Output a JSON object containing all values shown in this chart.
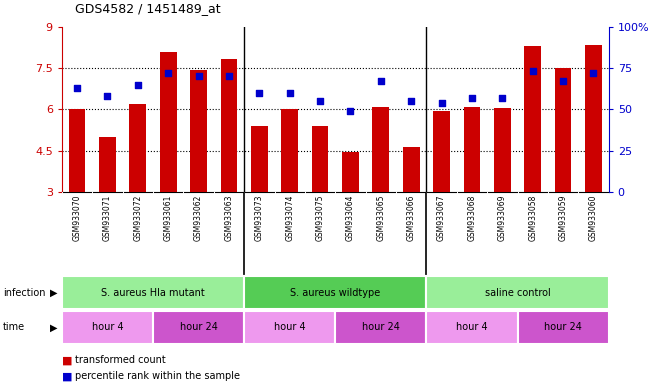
{
  "title": "GDS4582 / 1451489_at",
  "samples": [
    "GSM933070",
    "GSM933071",
    "GSM933072",
    "GSM933061",
    "GSM933062",
    "GSM933063",
    "GSM933073",
    "GSM933074",
    "GSM933075",
    "GSM933064",
    "GSM933065",
    "GSM933066",
    "GSM933067",
    "GSM933068",
    "GSM933069",
    "GSM933058",
    "GSM933059",
    "GSM933060"
  ],
  "bar_values": [
    6.0,
    5.0,
    6.2,
    8.1,
    7.45,
    7.85,
    5.4,
    6.0,
    5.4,
    4.45,
    6.1,
    4.65,
    5.95,
    6.1,
    6.05,
    8.3,
    7.5,
    8.35
  ],
  "blue_values": [
    63,
    58,
    65,
    72,
    70,
    70,
    60,
    60,
    55,
    49,
    67,
    55,
    54,
    57,
    57,
    73,
    67,
    72
  ],
  "bar_color": "#CC0000",
  "blue_color": "#0000CC",
  "y_min": 3,
  "y_max": 9,
  "y_ticks": [
    3,
    4.5,
    6,
    7.5,
    9
  ],
  "y_tick_labels": [
    "3",
    "4.5",
    "6",
    "7.5",
    "9"
  ],
  "y2_ticks": [
    0,
    25,
    50,
    75,
    100
  ],
  "y2_tick_labels": [
    "0",
    "25",
    "50",
    "75",
    "100%"
  ],
  "dotted_lines": [
    4.5,
    6.0,
    7.5
  ],
  "infection_groups": [
    {
      "label": "S. aureus Hla mutant",
      "start": 0,
      "end": 6,
      "color": "#99EE99"
    },
    {
      "label": "S. aureus wildtype",
      "start": 6,
      "end": 12,
      "color": "#55CC55"
    },
    {
      "label": "saline control",
      "start": 12,
      "end": 18,
      "color": "#99EE99"
    }
  ],
  "time_groups": [
    {
      "label": "hour 4",
      "start": 0,
      "end": 3,
      "color": "#EE99EE"
    },
    {
      "label": "hour 24",
      "start": 3,
      "end": 6,
      "color": "#CC55CC"
    },
    {
      "label": "hour 4",
      "start": 6,
      "end": 9,
      "color": "#EE99EE"
    },
    {
      "label": "hour 24",
      "start": 9,
      "end": 12,
      "color": "#CC55CC"
    },
    {
      "label": "hour 4",
      "start": 12,
      "end": 15,
      "color": "#EE99EE"
    },
    {
      "label": "hour 24",
      "start": 15,
      "end": 18,
      "color": "#CC55CC"
    }
  ],
  "legend_items": [
    {
      "label": "transformed count",
      "color": "#CC0000"
    },
    {
      "label": "percentile rank within the sample",
      "color": "#0000CC"
    }
  ],
  "bar_width": 0.55,
  "background_color": "#FFFFFF",
  "plot_bg_color": "#FFFFFF",
  "xlabel_color": "#CC0000",
  "y2_label_color": "#0000CC",
  "label_bg_color": "#CCCCCC",
  "group_border_color": "#000000"
}
